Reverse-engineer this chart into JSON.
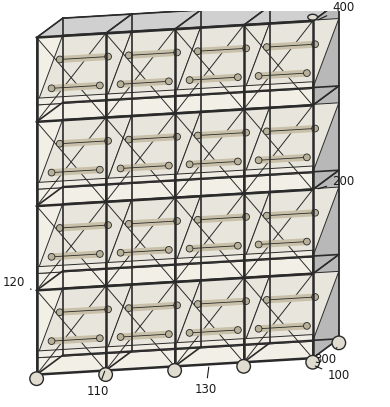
{
  "bg_color": "#ffffff",
  "line_color": "#2a2a2a",
  "c_white": "#f5f5f5",
  "c_light": "#e8e8e8",
  "c_mid": "#d0d0d0",
  "c_dark": "#b8b8b8",
  "c_shelf": "#d8d8d8",
  "lw_main": 1.2,
  "lw_thick": 1.8,
  "lw_thin": 0.7,
  "n_cols": 4,
  "n_rows": 4,
  "labels": [
    "100",
    "110",
    "120",
    "130",
    "200",
    "300",
    "400"
  ],
  "iso": {
    "ox": 310,
    "oy": 55,
    "sx": 65,
    "sdx": 28,
    "sdy": 14,
    "sz": 72
  }
}
